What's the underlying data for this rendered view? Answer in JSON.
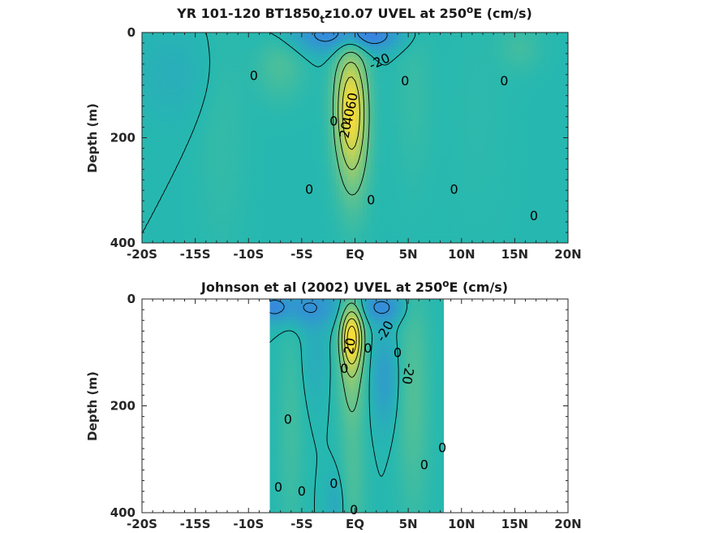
{
  "chart_data": [
    {
      "type": "heatmap",
      "title_parts": [
        "YR 101-120 BT1850",
        "t",
        "z10.07 UVEL at 250",
        "o",
        "E (cm/s)"
      ],
      "ylabel": "Depth (m)",
      "x_ticks": [
        -20,
        -15,
        -10,
        -5,
        0,
        5,
        10,
        15,
        20
      ],
      "x_tick_labels": [
        "-20S",
        "-15S",
        "-10S",
        "-5S",
        "EQ",
        "5N",
        "10N",
        "15N",
        "20N"
      ],
      "y_ticks": [
        0,
        200,
        400
      ],
      "y_tick_labels": [
        "0",
        "200",
        "400"
      ],
      "xlim": [
        -20,
        20
      ],
      "ylim": [
        0,
        400
      ],
      "y_reversed": true,
      "data_x_range": [
        -20,
        20
      ],
      "colors": {
        "background": "#26b8b0",
        "low": "#3a7fe6",
        "high": "#f4dc3a"
      },
      "blobs": [
        {
          "x": -0.4,
          "y": 135,
          "sx": 1.0,
          "sy": 75,
          "v": 70
        },
        {
          "x": -0.2,
          "y": 230,
          "sx": 1.0,
          "sy": 80,
          "v": 25
        },
        {
          "x": -2.5,
          "y": 5,
          "sx": 3.0,
          "sy": 25,
          "v": -22
        },
        {
          "x": 1.5,
          "y": 5,
          "sx": 2.0,
          "sy": 20,
          "v": -22
        },
        {
          "x": -7.0,
          "y": 60,
          "sx": 1.5,
          "sy": 45,
          "v": 12
        },
        {
          "x": 15.5,
          "y": 30,
          "sx": 1.3,
          "sy": 30,
          "v": 8
        },
        {
          "x": -17,
          "y": 80,
          "sx": 2.5,
          "sy": 60,
          "v": -5
        },
        {
          "x": -12.5,
          "y": 200,
          "sx": 1.5,
          "sy": 150,
          "v": 4
        },
        {
          "x": 5.5,
          "y": 120,
          "sx": 1.2,
          "sy": 120,
          "v": 5
        },
        {
          "x": 11.5,
          "y": 150,
          "sx": 2.0,
          "sy": 150,
          "v": 2
        }
      ],
      "contour_levels": [
        -20,
        0,
        20,
        40,
        60
      ],
      "contour_labels": [
        {
          "text": "-20",
          "x": 2.3,
          "y": 55,
          "rot": -25
        },
        {
          "text": "0",
          "x": -9.5,
          "y": 82,
          "rot": 0
        },
        {
          "text": "0",
          "x": 4.7,
          "y": 92,
          "rot": 0
        },
        {
          "text": "0",
          "x": 14.0,
          "y": 92,
          "rot": 0
        },
        {
          "text": "0",
          "x": -2.0,
          "y": 168,
          "rot": 0
        },
        {
          "text": "60",
          "x": -0.3,
          "y": 130,
          "rot": -80
        },
        {
          "text": "40",
          "x": -0.6,
          "y": 160,
          "rot": -80
        },
        {
          "text": "20",
          "x": -0.9,
          "y": 185,
          "rot": -80
        },
        {
          "text": "0",
          "x": -4.3,
          "y": 298,
          "rot": 0
        },
        {
          "text": "0",
          "x": 1.5,
          "y": 318,
          "rot": 0
        },
        {
          "text": "0",
          "x": 9.3,
          "y": 298,
          "rot": 0
        },
        {
          "text": "0",
          "x": 16.8,
          "y": 348,
          "rot": 0
        }
      ]
    },
    {
      "type": "heatmap",
      "title_parts": [
        "Johnson et al (2002) UVEL at 250",
        "o",
        "E (cm/s)"
      ],
      "ylabel": "Depth (m)",
      "x_ticks": [
        -20,
        -15,
        -10,
        -5,
        0,
        5,
        10,
        15,
        20
      ],
      "x_tick_labels": [
        "-20S",
        "-15S",
        "-10S",
        "-5S",
        "EQ",
        "5N",
        "10N",
        "15N",
        "20N"
      ],
      "y_ticks": [
        0,
        200,
        400
      ],
      "y_tick_labels": [
        "0",
        "200",
        "400"
      ],
      "xlim": [
        -20,
        20
      ],
      "ylim": [
        0,
        400
      ],
      "y_reversed": true,
      "data_x_range": [
        -8,
        8.3
      ],
      "colors": {
        "background": "#26b8b0",
        "low": "#3a7fe6",
        "high": "#f4dc3a"
      },
      "blobs": [
        {
          "x": -0.3,
          "y": 70,
          "sx": 0.7,
          "sy": 40,
          "v": 85
        },
        {
          "x": -0.3,
          "y": 150,
          "sx": 0.8,
          "sy": 60,
          "v": 25
        },
        {
          "x": -0.2,
          "y": 330,
          "sx": 0.8,
          "sy": 90,
          "v": 12
        },
        {
          "x": -4.5,
          "y": 15,
          "sx": 2.2,
          "sy": 25,
          "v": -20
        },
        {
          "x": 2.5,
          "y": 15,
          "sx": 1.5,
          "sy": 20,
          "v": -22
        },
        {
          "x": -7.8,
          "y": 15,
          "sx": 1.0,
          "sy": 18,
          "v": -18
        },
        {
          "x": 5.5,
          "y": 180,
          "sx": 1.0,
          "sy": 150,
          "v": 14
        },
        {
          "x": -6.0,
          "y": 250,
          "sx": 0.8,
          "sy": 150,
          "v": 8
        },
        {
          "x": 2.8,
          "y": 150,
          "sx": 0.9,
          "sy": 60,
          "v": -14
        },
        {
          "x": -3.8,
          "y": 110,
          "sx": 0.9,
          "sy": 60,
          "v": -6
        },
        {
          "x": -1.8,
          "y": 380,
          "sx": 0.7,
          "sy": 40,
          "v": -8
        }
      ],
      "contour_levels": [
        -20,
        0,
        20,
        40,
        60,
        80
      ],
      "contour_labels": [
        {
          "text": "-20",
          "x": 2.8,
          "y": 60,
          "rot": -60
        },
        {
          "text": "20",
          "x": -0.5,
          "y": 88,
          "rot": -80
        },
        {
          "text": "0",
          "x": 1.2,
          "y": 92,
          "rot": 0
        },
        {
          "text": "0",
          "x": 4.0,
          "y": 100,
          "rot": 0
        },
        {
          "text": "0",
          "x": -1.0,
          "y": 130,
          "rot": 0
        },
        {
          "text": "-20",
          "x": 5.0,
          "y": 140,
          "rot": 100
        },
        {
          "text": "0",
          "x": -6.3,
          "y": 225,
          "rot": 0
        },
        {
          "text": "0",
          "x": 8.2,
          "y": 278,
          "rot": 0
        },
        {
          "text": "0",
          "x": 6.5,
          "y": 310,
          "rot": 0
        },
        {
          "text": "0",
          "x": -7.2,
          "y": 352,
          "rot": 0
        },
        {
          "text": "0",
          "x": -5.0,
          "y": 360,
          "rot": 0
        },
        {
          "text": "0",
          "x": -2.0,
          "y": 345,
          "rot": 0
        },
        {
          "text": "0",
          "x": -0.1,
          "y": 395,
          "rot": 0
        }
      ]
    }
  ]
}
